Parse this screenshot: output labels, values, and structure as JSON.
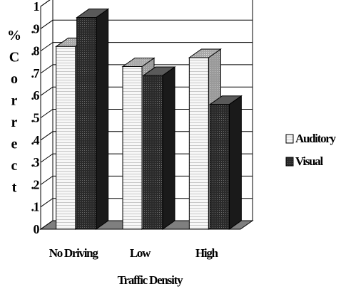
{
  "chart_data": {
    "type": "bar",
    "categories": [
      "No Driving",
      "Low",
      "High"
    ],
    "series": [
      {
        "name": "Auditory",
        "values": [
          0.82,
          0.73,
          0.77
        ]
      },
      {
        "name": "Visual",
        "values": [
          0.95,
          0.69,
          0.56
        ]
      }
    ],
    "title": "",
    "xlabel": "Traffic Density",
    "ylabel": "% Correct",
    "ylim": [
      0,
      1
    ],
    "yticks": [
      "0",
      "0.1",
      "0.2",
      "0.3",
      "0.4",
      "0.5",
      "0.6",
      "0.7",
      "0.8",
      "0.9",
      "1"
    ],
    "grid": true,
    "legend_position": "right",
    "three_d": true,
    "colors": {
      "auditory": "#f2f2f2",
      "visual": "#3a3a3a",
      "floor": "#7f7f7f",
      "gridline": "#000000"
    }
  }
}
